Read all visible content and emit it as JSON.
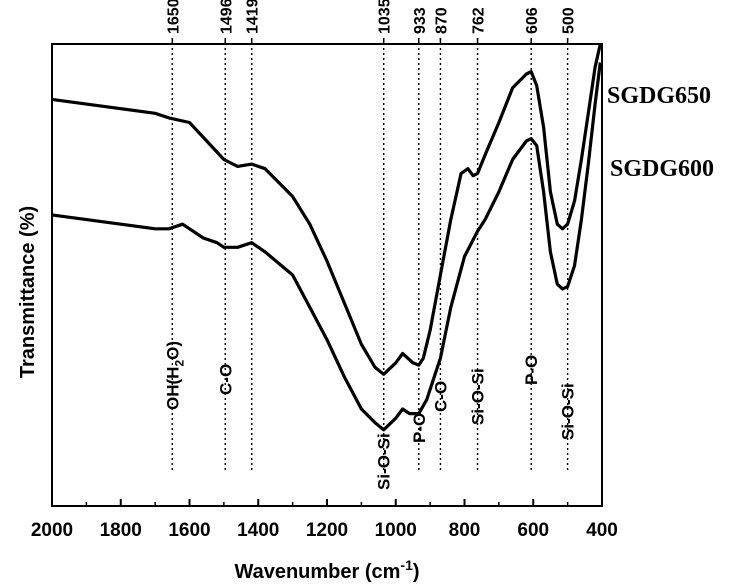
{
  "chart_data": {
    "type": "line",
    "xlabel": "Wavenumber",
    "xlabel_unit": "cm",
    "xlabel_unit_exp": "-1",
    "ylabel": "Transmittance (%)",
    "xlim": [
      2000,
      400
    ],
    "x_ticks": [
      2000,
      1800,
      1600,
      1400,
      1200,
      1000,
      800,
      600,
      400
    ],
    "y_ticks_shown": false,
    "ylim": [
      0,
      1
    ],
    "series": [
      {
        "name": "SGDG650",
        "x": [
          2000,
          1900,
          1800,
          1700,
          1660,
          1600,
          1550,
          1500,
          1460,
          1419,
          1380,
          1300,
          1250,
          1200,
          1150,
          1100,
          1060,
          1035,
          1000,
          980,
          950,
          933,
          920,
          900,
          870,
          840,
          810,
          790,
          775,
          762,
          740,
          700,
          660,
          620,
          606,
          590,
          570,
          550,
          530,
          515,
          500,
          480,
          460,
          440,
          420,
          405
        ],
        "y": [
          0.88,
          0.87,
          0.86,
          0.85,
          0.84,
          0.83,
          0.79,
          0.75,
          0.735,
          0.74,
          0.73,
          0.67,
          0.61,
          0.53,
          0.44,
          0.35,
          0.3,
          0.285,
          0.31,
          0.33,
          0.31,
          0.305,
          0.32,
          0.38,
          0.5,
          0.62,
          0.72,
          0.73,
          0.715,
          0.72,
          0.76,
          0.83,
          0.905,
          0.935,
          0.94,
          0.91,
          0.82,
          0.68,
          0.61,
          0.6,
          0.61,
          0.66,
          0.75,
          0.85,
          0.95,
          1.0
        ]
      },
      {
        "name": "SGDG600",
        "x": [
          2000,
          1900,
          1800,
          1700,
          1660,
          1620,
          1600,
          1560,
          1520,
          1500,
          1460,
          1419,
          1380,
          1300,
          1250,
          1200,
          1150,
          1100,
          1060,
          1035,
          1000,
          980,
          960,
          933,
          910,
          870,
          840,
          800,
          762,
          740,
          700,
          660,
          620,
          606,
          590,
          570,
          550,
          530,
          515,
          500,
          480,
          460,
          440,
          420,
          405
        ],
        "y": [
          0.63,
          0.62,
          0.61,
          0.6,
          0.6,
          0.61,
          0.6,
          0.58,
          0.57,
          0.56,
          0.56,
          0.57,
          0.55,
          0.5,
          0.43,
          0.36,
          0.28,
          0.21,
          0.18,
          0.165,
          0.19,
          0.21,
          0.2,
          0.2,
          0.23,
          0.32,
          0.43,
          0.54,
          0.595,
          0.62,
          0.68,
          0.75,
          0.79,
          0.795,
          0.78,
          0.68,
          0.55,
          0.48,
          0.47,
          0.475,
          0.52,
          0.62,
          0.74,
          0.87,
          0.96
        ]
      }
    ],
    "peak_markers": [
      {
        "label": "1650",
        "x": 1650
      },
      {
        "label": "1496",
        "x": 1496
      },
      {
        "label": "1419",
        "x": 1419
      },
      {
        "label": "1035",
        "x": 1035
      },
      {
        "label": "933",
        "x": 933
      },
      {
        "label": "870",
        "x": 870
      },
      {
        "label": "762",
        "x": 762
      },
      {
        "label": "606",
        "x": 606
      },
      {
        "label": "500",
        "x": 500
      }
    ],
    "band_labels": [
      {
        "text": "OH(H",
        "sub": "2",
        "text_after": "O)",
        "x": 1650
      },
      {
        "text": "C-O",
        "x": 1496
      },
      {
        "text": "Si-O-Si",
        "x": 1035
      },
      {
        "text": "P-O",
        "x": 933
      },
      {
        "text": "C-O",
        "x": 870
      },
      {
        "text": "Si-O-Si",
        "x": 762
      },
      {
        "text": "P-O",
        "x": 606
      },
      {
        "text": "Si-O-Si",
        "x": 500
      }
    ]
  }
}
